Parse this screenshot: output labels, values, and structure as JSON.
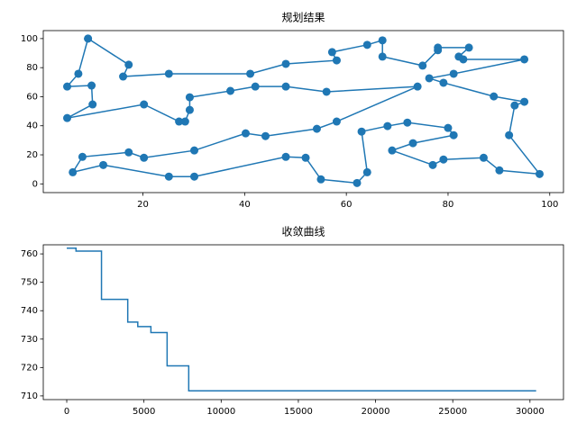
{
  "chart_data": [
    {
      "type": "line",
      "title": "规划结果",
      "color": "#1f77b4",
      "marker": "o",
      "x": [
        9.2,
        17.2,
        16.1,
        25.1,
        41.1,
        48.1,
        58.1,
        57.2,
        64.1,
        67.1,
        67.1,
        75,
        78,
        78,
        84.1,
        82.1,
        83,
        95,
        81.1,
        76.3,
        79.1,
        89,
        95,
        93.1,
        92,
        98,
        90.1,
        87,
        79.1,
        77,
        69,
        73.1,
        81.1,
        80,
        72,
        68.1,
        63,
        64.1,
        62.1,
        55,
        52,
        48.1,
        30.1,
        25.1,
        12.2,
        6.2,
        8.1,
        17.2,
        20.2,
        30.1,
        40.2,
        44.1,
        54.2,
        58.1,
        74,
        56.1,
        48.1,
        42.1,
        37.2,
        29.2,
        29.2,
        28.3,
        27.1,
        20.2,
        5.1,
        10.1,
        9.9,
        5.1,
        7.3,
        9.2
      ],
      "y": [
        100,
        82,
        73.9,
        75.8,
        75.8,
        82.6,
        85,
        90.7,
        95.7,
        98.8,
        87.6,
        81.4,
        92,
        93.8,
        93.8,
        87.6,
        85.7,
        85.7,
        75.8,
        72.7,
        69.6,
        60.2,
        56.5,
        54,
        33.5,
        6.8,
        9.3,
        18,
        16.8,
        13,
        23,
        28,
        33.5,
        38.5,
        42.2,
        39.8,
        36,
        8,
        0.6,
        3.1,
        18,
        18.6,
        5,
        5,
        13,
        8,
        18.6,
        21.7,
        18,
        23,
        34.8,
        32.9,
        37.9,
        42.9,
        67,
        63.4,
        67,
        67,
        64,
        59.6,
        50.9,
        42.9,
        42.9,
        54.7,
        45.3,
        54.7,
        67.7,
        67,
        75.8,
        100
      ],
      "xlim": [
        0.4,
        102.7
      ],
      "ylim": [
        -6,
        105.5
      ],
      "xticks": [
        20,
        40,
        60,
        80,
        100
      ],
      "yticks": [
        0,
        20,
        40,
        60,
        80,
        100
      ]
    },
    {
      "type": "line",
      "title": "收敛曲线",
      "color": "#1f77b4",
      "drawstyle": "steps-post",
      "x": [
        0,
        600,
        2250,
        3950,
        4600,
        5450,
        6500,
        7900,
        30400
      ],
      "y": [
        762,
        761,
        744,
        736,
        734.4,
        732.3,
        720.6,
        711.8,
        711.8
      ],
      "xlim": [
        -1520,
        32170
      ],
      "ylim": [
        708.7,
        763.2
      ],
      "xticks": [
        0,
        5000,
        10000,
        15000,
        20000,
        25000,
        30000
      ],
      "yticks": [
        710,
        720,
        730,
        740,
        750,
        760
      ]
    }
  ]
}
